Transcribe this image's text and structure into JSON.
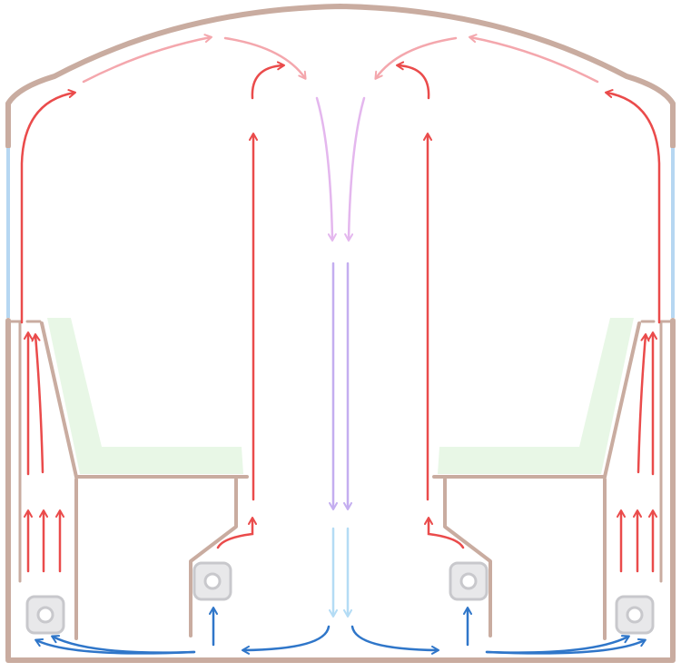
{
  "colors": {
    "wall": "#c9aca0",
    "window": "#b6d7f2",
    "cushion": "#e8f7e6",
    "heater_fill": "#e8e8ea",
    "heater_stroke": "#c8c8cc",
    "warm_air": "#ea4b4b",
    "warm_air_light": "#f4a7ad",
    "descending_upper": "#e4b7ee",
    "descending_middle": "#c4aef0",
    "descending_lower": "#b4dcf5",
    "cool_air": "#2f76c9",
    "background": "#ffffff"
  },
  "icons": {
    "heater": "square-heater-icon",
    "arrow": "arrowhead-icon"
  }
}
